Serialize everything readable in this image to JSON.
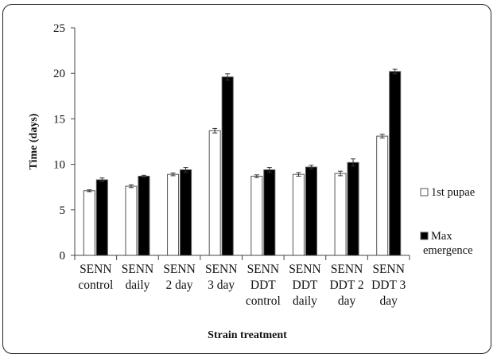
{
  "chart_data": {
    "type": "bar",
    "categories": [
      [
        "SENN",
        "control"
      ],
      [
        "SENN",
        "daily"
      ],
      [
        "SENN",
        "2 day"
      ],
      [
        "SENN",
        "3 day"
      ],
      [
        "SENN",
        "DDT",
        "control"
      ],
      [
        "SENN",
        "DDT",
        "daily"
      ],
      [
        "SENN",
        "DDT 2",
        "day"
      ],
      [
        "SENN",
        "DDT 3",
        "day"
      ]
    ],
    "series": [
      {
        "name": "1st pupae",
        "color": "#ffffff",
        "values": [
          7.1,
          7.6,
          8.9,
          13.7,
          8.7,
          8.9,
          9.0,
          13.1
        ],
        "errors": [
          0.1,
          0.15,
          0.15,
          0.25,
          0.15,
          0.2,
          0.25,
          0.2
        ]
      },
      {
        "name": "Max emergence",
        "color": "#000000",
        "values": [
          8.3,
          8.7,
          9.4,
          19.6,
          9.4,
          9.7,
          10.2,
          20.2
        ],
        "errors": [
          0.2,
          0.1,
          0.25,
          0.35,
          0.25,
          0.2,
          0.4,
          0.25
        ]
      }
    ],
    "xlabel": "Strain treatment",
    "ylabel": "Time (days)",
    "ylim": [
      0,
      25
    ],
    "yticks": [
      0,
      5,
      10,
      15,
      20,
      25
    ],
    "legend": {
      "position": "right",
      "entries": [
        [
          "1st pupae"
        ],
        [
          "Max",
          "emergence"
        ]
      ]
    },
    "grid": false
  }
}
